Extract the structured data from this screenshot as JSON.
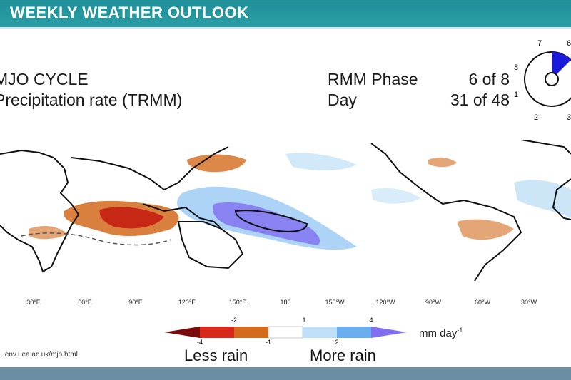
{
  "header": {
    "title": "WEEKLY WEATHER OUTLOOK"
  },
  "mjo": {
    "title": "MJO CYCLE",
    "subtitle": "Precipitation rate (TRMM)",
    "rmm_label": "RMM Phase",
    "rmm_value": "6 of 8",
    "day_label": "Day",
    "day_value": "31 of 48"
  },
  "phase_wheel": {
    "labels": [
      "7",
      "6",
      "8",
      "1",
      "2",
      "3"
    ],
    "active_phase": 6,
    "active_color": "#1a1adb"
  },
  "longitude_labels": [
    "30°E",
    "60°E",
    "90°E",
    "120°E",
    "150°E",
    "180",
    "150°W",
    "120°W",
    "90°W",
    "60°W",
    "30°W"
  ],
  "legend": {
    "tick_top": [
      "-2",
      "1",
      "4"
    ],
    "tick_bottom": [
      "-4",
      "-1",
      "2"
    ],
    "unit": "mm day",
    "unit_sup": "-1",
    "less": "Less rain",
    "more": "More rain",
    "colors": [
      "#7a0a0a",
      "#d8281a",
      "#d46a1c",
      "#ffffff",
      "#bfe0f6",
      "#6aaef0",
      "#7f6ef0"
    ]
  },
  "source": ".env.uea.ac.uk/mjo.html"
}
